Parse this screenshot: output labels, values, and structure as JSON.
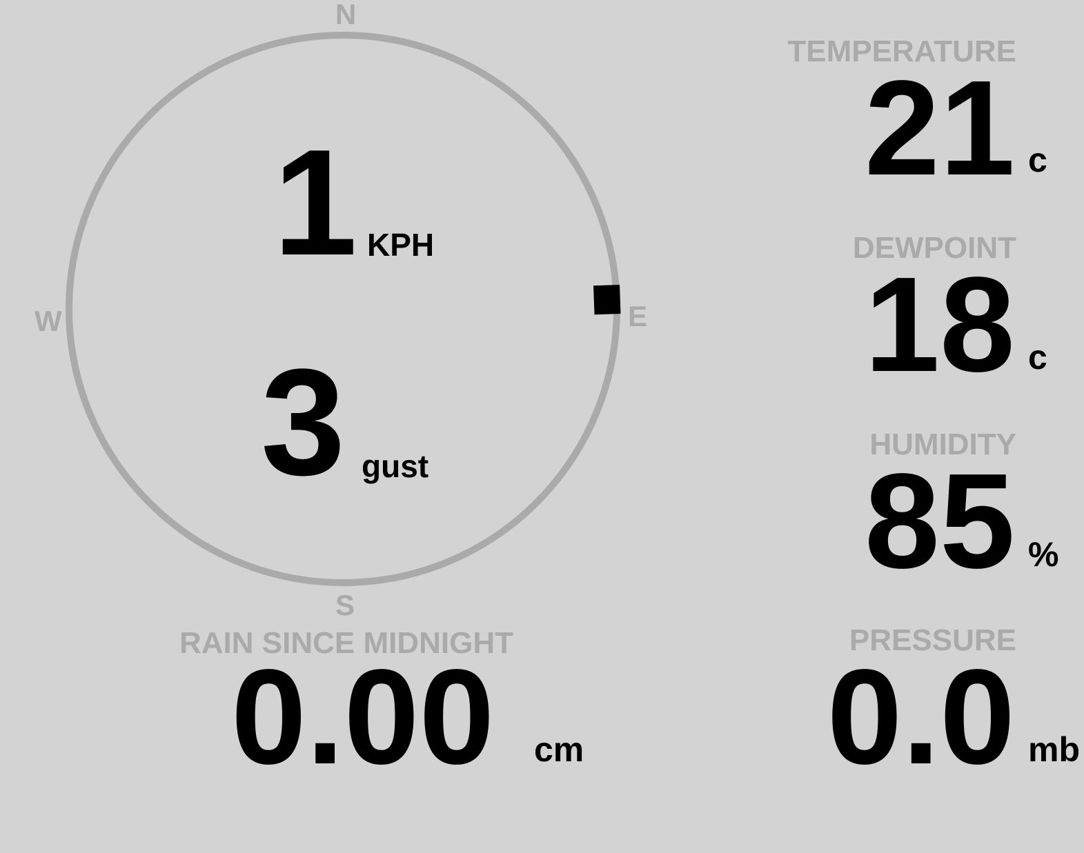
{
  "colors": {
    "background": "#d3d3d3",
    "label": "#aaaaaa",
    "value": "#000000",
    "compass_ring": "#aaaaaa",
    "pointer": "#000000"
  },
  "compass": {
    "north": "N",
    "south": "S",
    "east": "E",
    "west": "W",
    "wind_direction_deg": 88,
    "wind_speed": "1",
    "wind_speed_unit": "KPH",
    "gust": "3",
    "gust_unit": "gust"
  },
  "temperature": {
    "label": "TEMPERATURE",
    "value": "21",
    "unit": "c"
  },
  "dewpoint": {
    "label": "DEWPOINT",
    "value": "18",
    "unit": "c"
  },
  "humidity": {
    "label": "HUMIDITY",
    "value": "85",
    "unit": "%"
  },
  "pressure": {
    "label": "PRESSURE",
    "value": "0.0",
    "unit": "mb"
  },
  "rain": {
    "label": "RAIN SINCE MIDNIGHT",
    "value": "0.00",
    "unit": "cm"
  }
}
